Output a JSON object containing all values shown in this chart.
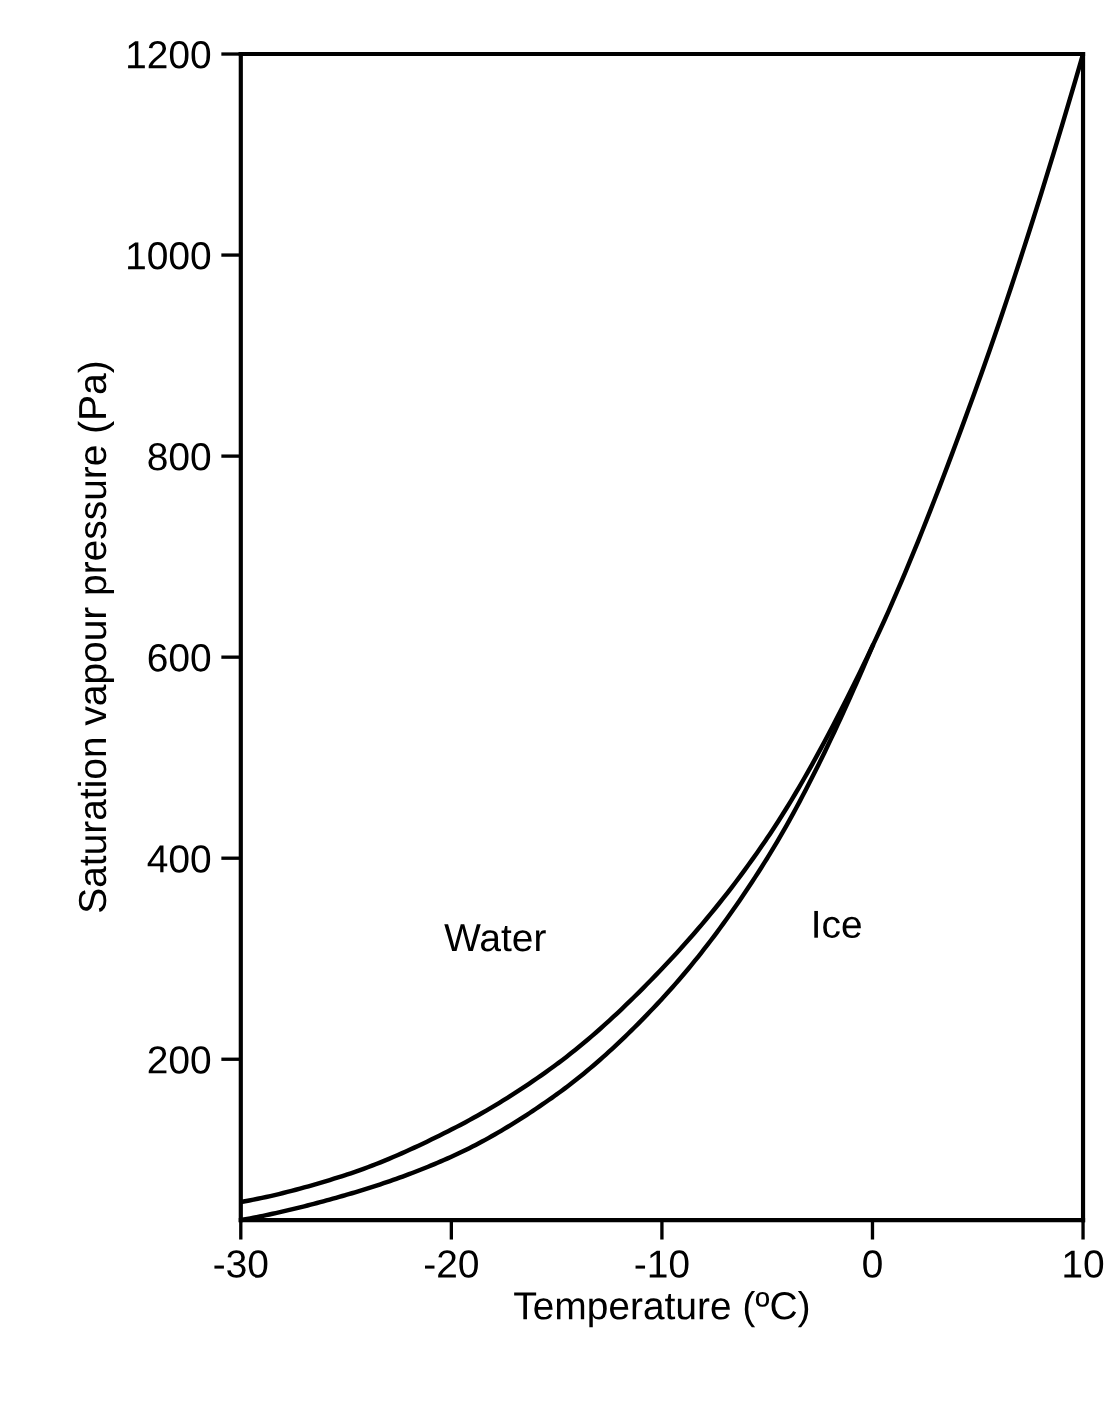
{
  "chart_data": {
    "type": "line",
    "xlabel": "Temperature (ºC)",
    "ylabel": "Saturation vapour pressure (Pa)",
    "x": [
      -30,
      -25,
      -20,
      -15,
      -10,
      -5,
      0,
      5,
      10
    ],
    "series": [
      {
        "name": "Water",
        "color": "#000000",
        "values": [
          58,
          85,
          130,
          195,
          290,
          420,
          611,
          872,
          1200
        ]
      },
      {
        "name": "Ice",
        "color": "#000000",
        "values": [
          40,
          65,
          103,
          165,
          260,
          400,
          611,
          null,
          null
        ]
      }
    ],
    "xlim": [
      -30,
      10
    ],
    "xticks": [
      -30,
      -20,
      -10,
      0,
      10
    ],
    "ylim": [
      40,
      1200
    ],
    "yticks": [
      200,
      400,
      600,
      800,
      1000,
      1200
    ],
    "grid": false,
    "legend": false,
    "marker": "none",
    "line_style": "solid"
  }
}
